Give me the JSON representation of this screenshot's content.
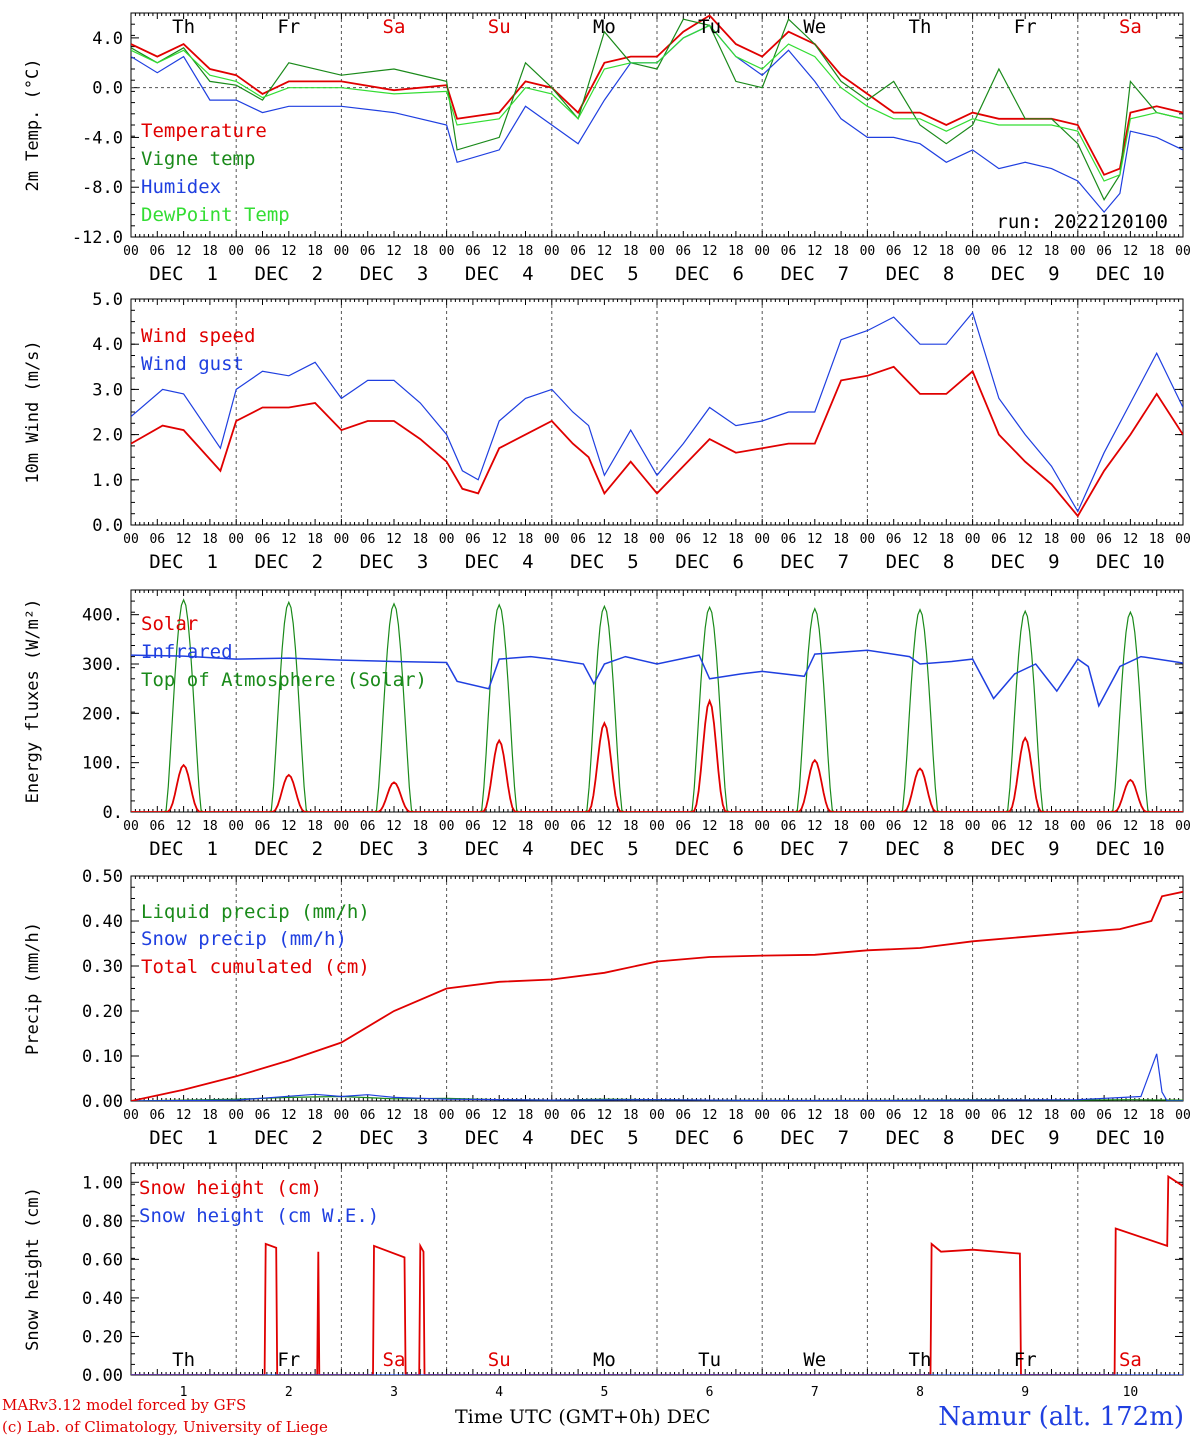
{
  "footer": {
    "credit_model": "MARv3.12 model forced by GFS",
    "credit_lab": "(c) Lab. of Climatology, University of Liege",
    "x_axis_title": "Time UTC (GMT+0h) DEC",
    "location": "Namur (alt. 172m)"
  },
  "colors": {
    "red": "#e00000",
    "green": "#1a8a1a",
    "blue": "#1f3fe0",
    "lightgreen": "#33dd33",
    "grid": "#555555"
  },
  "hour_ticks": [
    "00",
    "06",
    "12",
    "18"
  ],
  "day_labels": [
    "DEC  1",
    "DEC  2",
    "DEC  3",
    "DEC  4",
    "DEC  5",
    "DEC  6",
    "DEC  7",
    "DEC  8",
    "DEC  9",
    "DEC 10"
  ],
  "weekdays": [
    {
      "label": "Th",
      "color": "#000000"
    },
    {
      "label": "Fr",
      "color": "#000000"
    },
    {
      "label": "Sa",
      "color": "#e00000"
    },
    {
      "label": "Su",
      "color": "#e00000"
    },
    {
      "label": "Mo",
      "color": "#000000"
    },
    {
      "label": "Tu",
      "color": "#000000"
    },
    {
      "label": "We",
      "color": "#000000"
    },
    {
      "label": "Th",
      "color": "#000000"
    },
    {
      "label": "Fr",
      "color": "#000000"
    },
    {
      "label": "Sa",
      "color": "#e00000"
    }
  ],
  "bottom_day_numbers": [
    "1",
    "2",
    "3",
    "4",
    "5",
    "6",
    "7",
    "8",
    "9",
    "10"
  ],
  "chart_data": [
    {
      "type": "line",
      "ylabel": "2m Temp. (°C)",
      "ylim": [
        -12,
        6
      ],
      "yticks": [
        "4.0",
        "0.0",
        "-4.0",
        "-8.0",
        "-12.0"
      ],
      "annotation": "run: 2022120100",
      "x_unit": "days since 1 DEC 00 UTC",
      "series": [
        {
          "name": "Temperature",
          "color": "#e00000",
          "x": [
            0,
            0.25,
            0.5,
            0.75,
            1,
            1.25,
            1.5,
            2,
            2.5,
            3,
            3.1,
            3.5,
            3.75,
            4,
            4.25,
            4.5,
            4.75,
            5,
            5.25,
            5.5,
            5.75,
            6,
            6.25,
            6.5,
            6.75,
            7,
            7.25,
            7.5,
            7.75,
            8,
            8.25,
            8.5,
            8.75,
            9,
            9.25,
            9.4,
            9.5,
            9.75,
            10
          ],
          "y": [
            3.5,
            2.5,
            3.5,
            1.5,
            1.0,
            -0.5,
            0.5,
            0.5,
            -0.2,
            0.2,
            -2.5,
            -2.0,
            0.5,
            0.0,
            -2.0,
            2.0,
            2.5,
            2.5,
            4.5,
            5.8,
            3.5,
            2.5,
            4.5,
            3.5,
            1.0,
            -0.5,
            -2.0,
            -2.0,
            -3.0,
            -2.0,
            -2.5,
            -2.5,
            -2.5,
            -3.0,
            -7.0,
            -6.5,
            -2.0,
            -1.5,
            -2.0
          ]
        },
        {
          "name": "Vigne temp",
          "color": "#1a8a1a",
          "x": [
            0,
            0.25,
            0.5,
            0.75,
            1,
            1.25,
            1.5,
            2,
            2.5,
            3,
            3.1,
            3.5,
            3.75,
            4,
            4.25,
            4.5,
            4.75,
            5,
            5.25,
            5.5,
            5.75,
            6,
            6.25,
            6.5,
            6.75,
            7,
            7.25,
            7.5,
            7.75,
            8,
            8.25,
            8.5,
            8.75,
            9,
            9.25,
            9.4,
            9.5,
            9.75,
            10
          ],
          "y": [
            3.2,
            2.0,
            3.2,
            0.5,
            0.2,
            -1.0,
            2.0,
            1.0,
            1.5,
            0.5,
            -5.0,
            -4.0,
            2.0,
            0.0,
            -2.5,
            4.5,
            2.0,
            1.5,
            5.5,
            5.0,
            0.5,
            0.0,
            5.5,
            3.5,
            0.5,
            -1.0,
            0.5,
            -3.0,
            -4.5,
            -3.0,
            1.5,
            -2.5,
            -2.5,
            -4.5,
            -9.0,
            -7.0,
            0.5,
            -2.0,
            -2.5
          ]
        },
        {
          "name": "Humidex",
          "color": "#1f3fe0",
          "x": [
            0,
            0.25,
            0.5,
            0.75,
            1,
            1.25,
            1.5,
            2,
            2.5,
            3,
            3.1,
            3.5,
            3.75,
            4,
            4.25,
            4.5,
            4.75,
            5,
            5.25,
            5.5,
            5.75,
            6,
            6.25,
            6.5,
            6.75,
            7,
            7.25,
            7.5,
            7.75,
            8,
            8.25,
            8.5,
            8.75,
            9,
            9.25,
            9.4,
            9.5,
            9.75,
            10
          ],
          "y": [
            2.5,
            1.2,
            2.5,
            -1.0,
            -1.0,
            -2.0,
            -1.5,
            -1.5,
            -2.0,
            -3.0,
            -6.0,
            -5.0,
            -1.5,
            -3.0,
            -4.5,
            -1.0,
            2.0,
            2.0,
            4.0,
            5.0,
            2.5,
            1.0,
            3.0,
            0.5,
            -2.5,
            -4.0,
            -4.0,
            -4.5,
            -6.0,
            -5.0,
            -6.5,
            -6.0,
            -6.5,
            -7.5,
            -10.0,
            -8.5,
            -3.5,
            -4.0,
            -5.0
          ]
        },
        {
          "name": "DewPoint Temp",
          "color": "#33dd33",
          "x": [
            0,
            0.25,
            0.5,
            0.75,
            1,
            1.25,
            1.5,
            2,
            2.5,
            3,
            3.1,
            3.5,
            3.75,
            4,
            4.25,
            4.5,
            4.75,
            5,
            5.25,
            5.5,
            5.75,
            6,
            6.25,
            6.5,
            6.75,
            7,
            7.25,
            7.5,
            7.75,
            8,
            8.25,
            8.5,
            8.75,
            9,
            9.25,
            9.4,
            9.5,
            9.75,
            10
          ],
          "y": [
            3.0,
            2.0,
            3.0,
            1.0,
            0.5,
            -0.8,
            0.0,
            0.0,
            -0.5,
            -0.3,
            -3.0,
            -2.5,
            0.0,
            -0.5,
            -2.5,
            1.5,
            2.0,
            2.0,
            4.0,
            5.0,
            2.5,
            1.5,
            3.5,
            2.5,
            0.0,
            -1.5,
            -2.5,
            -2.5,
            -3.5,
            -2.5,
            -3.0,
            -3.0,
            -3.0,
            -3.5,
            -7.5,
            -7.0,
            -2.5,
            -2.0,
            -2.5
          ]
        }
      ]
    },
    {
      "type": "line",
      "ylabel": "10m Wind (m/s)",
      "ylim": [
        0,
        5
      ],
      "yticks": [
        "5.0",
        "4.0",
        "3.0",
        "2.0",
        "1.0",
        "0.0"
      ],
      "x_unit": "days since 1 DEC 00 UTC",
      "series": [
        {
          "name": "Wind speed",
          "color": "#e00000",
          "x": [
            0,
            0.3,
            0.5,
            0.85,
            1,
            1.25,
            1.5,
            1.75,
            2,
            2.25,
            2.5,
            2.75,
            3,
            3.15,
            3.3,
            3.5,
            3.75,
            4,
            4.2,
            4.35,
            4.5,
            4.75,
            5,
            5.25,
            5.5,
            5.75,
            6,
            6.25,
            6.5,
            6.75,
            7,
            7.25,
            7.5,
            7.75,
            8,
            8.25,
            8.5,
            8.75,
            9,
            9.25,
            9.5,
            9.75,
            10
          ],
          "y": [
            1.8,
            2.2,
            2.1,
            1.2,
            2.3,
            2.6,
            2.6,
            2.7,
            2.1,
            2.3,
            2.3,
            1.9,
            1.4,
            0.8,
            0.7,
            1.7,
            2.0,
            2.3,
            1.8,
            1.5,
            0.7,
            1.4,
            0.7,
            1.3,
            1.9,
            1.6,
            1.7,
            1.8,
            1.8,
            3.2,
            3.3,
            3.5,
            2.9,
            2.9,
            3.4,
            2.0,
            1.4,
            0.9,
            0.2,
            1.2,
            2.0,
            2.9,
            2.0
          ]
        },
        {
          "name": "Wind gust",
          "color": "#1f3fe0",
          "x": [
            0,
            0.3,
            0.5,
            0.85,
            1,
            1.25,
            1.5,
            1.75,
            2,
            2.25,
            2.5,
            2.75,
            3,
            3.15,
            3.3,
            3.5,
            3.75,
            4,
            4.2,
            4.35,
            4.5,
            4.75,
            5,
            5.25,
            5.5,
            5.75,
            6,
            6.25,
            6.5,
            6.75,
            7,
            7.25,
            7.5,
            7.75,
            8,
            8.25,
            8.5,
            8.75,
            9,
            9.25,
            9.5,
            9.75,
            10
          ],
          "y": [
            2.4,
            3.0,
            2.9,
            1.7,
            3.0,
            3.4,
            3.3,
            3.6,
            2.8,
            3.2,
            3.2,
            2.7,
            2.0,
            1.2,
            1.0,
            2.3,
            2.8,
            3.0,
            2.5,
            2.2,
            1.1,
            2.1,
            1.1,
            1.8,
            2.6,
            2.2,
            2.3,
            2.5,
            2.5,
            4.1,
            4.3,
            4.6,
            4.0,
            4.0,
            4.7,
            2.8,
            2.0,
            1.3,
            0.3,
            1.6,
            2.7,
            3.8,
            2.6
          ]
        }
      ]
    },
    {
      "type": "line",
      "ylabel": "Energy fluxes (W/m²)",
      "ylim": [
        0,
        450
      ],
      "yticks": [
        "400.",
        "300.",
        "200.",
        "100.",
        "0."
      ],
      "x_unit": "days since 1 DEC 00 UTC",
      "toa_peaks": [
        430,
        425,
        422,
        420,
        417,
        415,
        412,
        410,
        407,
        405
      ],
      "solar_peaks": [
        95,
        75,
        60,
        145,
        180,
        225,
        105,
        88,
        150,
        65
      ],
      "series": [
        {
          "name": "Solar",
          "color": "#e00000"
        },
        {
          "name": "Infrared",
          "color": "#1f3fe0",
          "x": [
            0,
            0.5,
            1,
            1.5,
            2,
            2.5,
            3,
            3.1,
            3.4,
            3.5,
            3.8,
            4,
            4.3,
            4.4,
            4.5,
            4.7,
            5,
            5.4,
            5.5,
            5.8,
            6,
            6.4,
            6.5,
            7,
            7.4,
            7.5,
            7.8,
            8,
            8.2,
            8.4,
            8.6,
            8.8,
            9,
            9.1,
            9.2,
            9.4,
            9.6,
            10
          ],
          "y": [
            318,
            316,
            310,
            312,
            308,
            305,
            303,
            265,
            250,
            310,
            315,
            310,
            300,
            260,
            300,
            315,
            300,
            318,
            270,
            280,
            285,
            275,
            320,
            328,
            315,
            300,
            305,
            310,
            230,
            280,
            300,
            245,
            310,
            295,
            215,
            295,
            315,
            302
          ]
        },
        {
          "name": "Top of Atmosphere (Solar)",
          "color": "#1a8a1a"
        }
      ]
    },
    {
      "type": "line",
      "ylabel": "Precip (mm/h)",
      "ylim": [
        0,
        0.5
      ],
      "yticks": [
        "0.50",
        "0.40",
        "0.30",
        "0.20",
        "0.10",
        "0.00"
      ],
      "x_unit": "days since 1 DEC 00 UTC",
      "series": [
        {
          "name": "Liquid precip (mm/h)",
          "color": "#1a8a1a",
          "x": [
            0,
            1,
            1.5,
            2,
            2.5,
            3,
            3.5,
            4,
            4.5,
            5,
            6,
            7,
            8,
            9,
            9.5,
            10
          ],
          "y": [
            0.0,
            0.004,
            0.008,
            0.01,
            0.005,
            0.006,
            0.003,
            0.002,
            0.004,
            0.003,
            0.001,
            0.001,
            0.003,
            0.002,
            0.003,
            0.002
          ]
        },
        {
          "name": "Snow precip (mm/h)",
          "color": "#1f3fe0",
          "x": [
            0,
            1,
            1.75,
            2,
            2.25,
            2.5,
            3,
            4,
            5,
            6,
            7,
            8,
            9,
            9.6,
            9.75,
            9.8,
            9.85,
            10
          ],
          "y": [
            0.0,
            0.002,
            0.015,
            0.01,
            0.014,
            0.008,
            0.004,
            0.002,
            0.003,
            0.001,
            0.001,
            0.002,
            0.003,
            0.01,
            0.105,
            0.02,
            0.0,
            0.0
          ]
        },
        {
          "name": "Total cumulated (cm)",
          "color": "#e00000",
          "x": [
            0,
            0.5,
            1,
            1.5,
            2,
            2.5,
            3,
            3.5,
            4,
            4.5,
            5,
            5.5,
            6,
            6.5,
            7,
            7.5,
            8,
            8.5,
            9,
            9.4,
            9.7,
            9.8,
            10
          ],
          "y": [
            0.0,
            0.025,
            0.055,
            0.09,
            0.13,
            0.2,
            0.25,
            0.265,
            0.27,
            0.285,
            0.31,
            0.32,
            0.323,
            0.325,
            0.335,
            0.34,
            0.355,
            0.365,
            0.375,
            0.382,
            0.4,
            0.455,
            0.465
          ]
        }
      ]
    },
    {
      "type": "line",
      "ylabel": "Snow height (cm)",
      "ylim": [
        0,
        1.1
      ],
      "yticks": [
        "1.00",
        "0.80",
        "0.60",
        "0.40",
        "0.20",
        "0.00"
      ],
      "x_unit": "days since 1 DEC 00 UTC",
      "series": [
        {
          "name": "Snow height (cm)",
          "color": "#e00000",
          "x": [
            0,
            1.27,
            1.28,
            1.38,
            1.39,
            1.77,
            1.78,
            1.79,
            2.3,
            2.31,
            2.6,
            2.61,
            2.74,
            2.75,
            2.78,
            2.79,
            7.6,
            7.61,
            7.7,
            8.0,
            8.45,
            8.46,
            9.35,
            9.36,
            9.85,
            9.86,
            10
          ],
          "y": [
            0,
            0,
            0.68,
            0.66,
            0,
            0,
            0.64,
            0,
            0,
            0.67,
            0.61,
            0,
            0,
            0.67,
            0.64,
            0,
            0,
            0.68,
            0.64,
            0.65,
            0.63,
            0,
            0,
            0.76,
            0.67,
            1.03,
            0.98
          ]
        },
        {
          "name": "Snow height (cm W.E.)",
          "color": "#1f3fe0",
          "x": [
            0,
            10
          ],
          "y": [
            0,
            0
          ]
        }
      ]
    }
  ]
}
